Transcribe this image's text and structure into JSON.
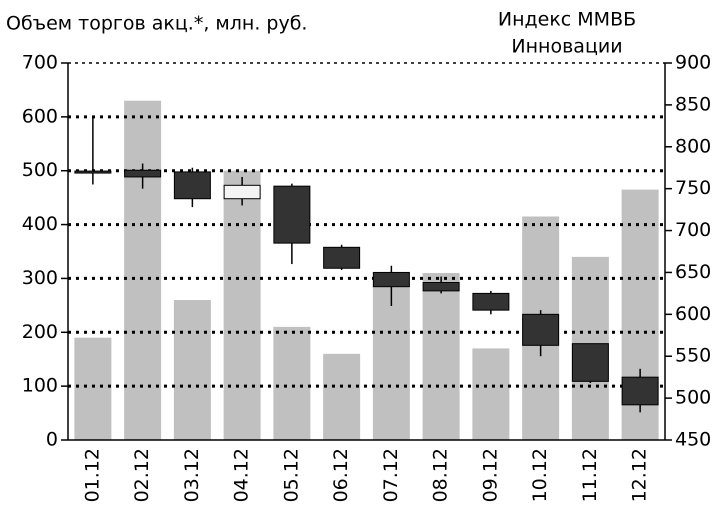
{
  "chart_data": {
    "type": "bar_candlestick",
    "y_label": "Объем торгов акц.*, млн. руб.",
    "y2_label": [
      "Индекс ММВБ",
      "Инновации"
    ],
    "categories": [
      "01.12",
      "02.12",
      "03.12",
      "04.12",
      "05.12",
      "06.12",
      "07.12",
      "08.12",
      "09.12",
      "10.12",
      "11.12",
      "12.12"
    ],
    "ylim": [
      0,
      700
    ],
    "yticks": [
      0,
      100,
      200,
      300,
      400,
      500,
      600,
      700
    ],
    "y2lim": [
      450,
      900
    ],
    "y2ticks": [
      450,
      500,
      550,
      600,
      650,
      700,
      750,
      800,
      850,
      900
    ],
    "grid": true,
    "bars": {
      "color": "#c0c0c0",
      "values": [
        190,
        630,
        260,
        500,
        210,
        160,
        290,
        310,
        170,
        415,
        340,
        465
      ]
    },
    "candles": {
      "axis": "y2",
      "up_color": "#f4f4f4",
      "down_color": "#333333",
      "open": [
        771,
        772,
        770,
        738,
        753,
        680,
        650,
        638,
        625,
        600,
        565,
        525
      ],
      "high": [
        835,
        780,
        775,
        764,
        756,
        683,
        658,
        645,
        628,
        605,
        565,
        535
      ],
      "low": [
        755,
        750,
        728,
        730,
        660,
        653,
        610,
        625,
        600,
        550,
        518,
        483
      ],
      "close": [
        769,
        764,
        738,
        754,
        685,
        655,
        633,
        628,
        605,
        563,
        520,
        492
      ]
    }
  }
}
